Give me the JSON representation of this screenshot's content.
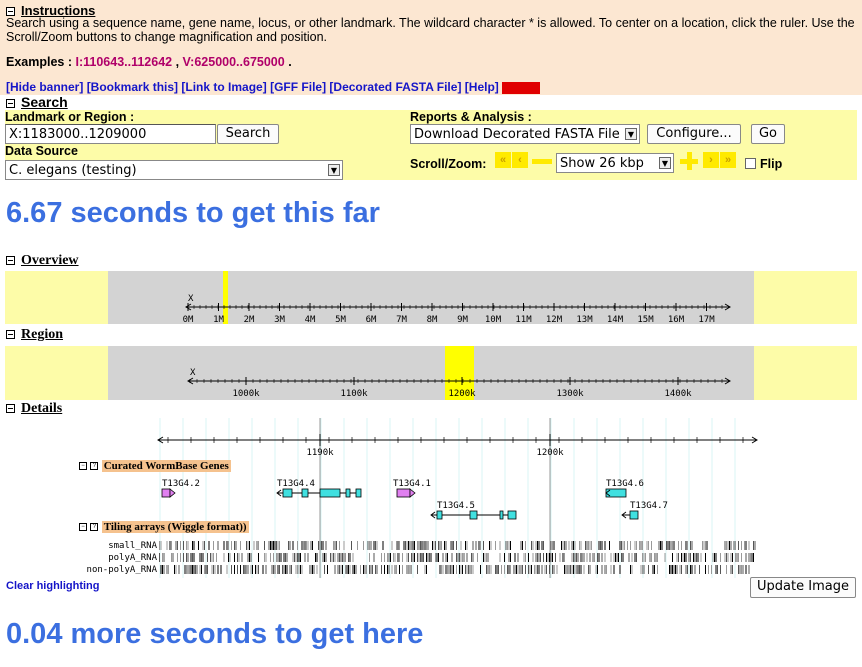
{
  "banner": {
    "title": "Instructions",
    "text": "Search using a sequence name, gene name, locus, or other landmark. The wildcard character * is allowed. To center on a location, click the ruler. Use the Scroll/Zoom buttons to change magnification and position.",
    "examples_label": "Examples",
    "example1": "I:110643..112642",
    "example2": "V:625000..675000",
    "links": [
      "[Hide banner]",
      "[Bookmark this]",
      "[Link to Image]",
      "[GFF File]",
      "[Decorated FASTA File]",
      "[Help]"
    ]
  },
  "search": {
    "section_title": "Search",
    "landmark_label": "Landmark or Region",
    "landmark_value": "X:1183000..1209000",
    "search_button": "Search",
    "datasource_label": "Data Source",
    "datasource_value": "C. elegans (testing)",
    "reports_label": "Reports & Analysis",
    "reports_value": "Download Decorated FASTA File",
    "configure_button": "Configure...",
    "go_button": "Go",
    "scroll_label": "Scroll/Zoom:",
    "zoom_value": "Show 26 kbp",
    "flip_label": "Flip"
  },
  "timing": {
    "first": "6.67 seconds to get this far",
    "second": "0.04 more seconds to get here"
  },
  "overview": {
    "title": "Overview",
    "chrom": "X",
    "ticks": [
      "0M",
      "1M",
      "2M",
      "3M",
      "4M",
      "5M",
      "6M",
      "7M",
      "8M",
      "9M",
      "10M",
      "11M",
      "12M",
      "13M",
      "14M",
      "15M",
      "16M",
      "17M"
    ]
  },
  "region": {
    "title": "Region",
    "chrom": "X",
    "ticks": [
      "1000k",
      "1100k",
      "1200k",
      "1300k",
      "1400k"
    ]
  },
  "details": {
    "title": "Details",
    "ticks": [
      "1190k",
      "1200k"
    ],
    "track_genes": "Curated WormBase Genes",
    "genes": [
      "T13G4.2",
      "T13G4.4",
      "T13G4.1",
      "T13G4.5",
      "T13G4.6",
      "T13G4.7"
    ],
    "track_tiling": "Tiling arrays (Wiggle format))",
    "tiling_rows": [
      "small_RNA",
      "polyA_RNA",
      "non-polyA_RNA"
    ]
  },
  "clear_highlighting": "Clear highlighting",
  "update_button": "Update Image",
  "colors": {
    "banner": "#fce7d2",
    "panel": "#fdfca8",
    "accent": "#3b6fe0",
    "gene": "#40e0e0",
    "gene_alt": "#e080f0",
    "highlight": "#ffff00"
  }
}
